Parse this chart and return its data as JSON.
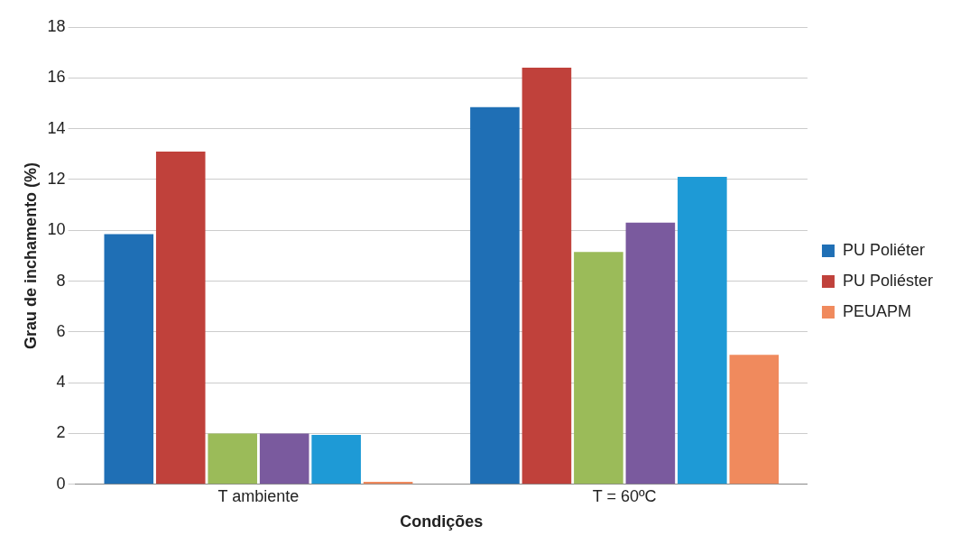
{
  "chart_data": {
    "type": "bar",
    "xlabel": "Condições",
    "ylabel": "Grau de inchamento (%)",
    "categories": [
      "T ambiente",
      "T = 60ºC"
    ],
    "series": [
      {
        "name": "PU Poliéter",
        "color": "#1f6fb5",
        "values": [
          9.85,
          14.85
        ]
      },
      {
        "name": "PU Poliéster",
        "color": "#c0413b",
        "values": [
          13.1,
          16.4
        ]
      },
      {
        "color": "#9bbb59",
        "values": [
          2.0,
          9.15
        ]
      },
      {
        "color": "#7a5a9e",
        "values": [
          2.0,
          10.3
        ]
      },
      {
        "color": "#1e9ad6",
        "values": [
          1.95,
          12.1
        ]
      },
      {
        "name": "PEUAPM",
        "color": "#f08a5d",
        "values": [
          0.1,
          5.1
        ]
      }
    ],
    "ylim": [
      0,
      18
    ],
    "yticks": [
      0,
      2,
      4,
      6,
      8,
      10,
      12,
      14,
      16,
      18
    ],
    "grid": "y",
    "legend": "right"
  }
}
